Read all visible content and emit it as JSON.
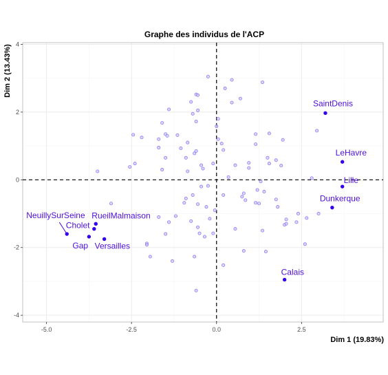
{
  "chart_data": {
    "type": "scatter",
    "title": "Graphe des individus de l'ACP",
    "xlabel": "Dim 1 (19.83%)",
    "ylabel": "Dim 2 (13.43%)",
    "xlim": [
      -5.7,
      4.9
    ],
    "ylim": [
      -4.2,
      4.05
    ],
    "xticks": [
      -5.0,
      -2.5,
      0.0,
      2.5
    ],
    "xtick_labels": [
      "-5.0",
      "-2.5",
      "0.0",
      "2.5"
    ],
    "yticks": [
      -4,
      -2,
      0,
      2,
      4
    ],
    "ytick_labels": [
      "-4",
      "-2",
      "0",
      "2",
      "4"
    ],
    "grid": true,
    "reference_lines": {
      "x": 0,
      "y": 0,
      "style": "dashed"
    },
    "colors": {
      "point": "#3300ee",
      "label": "#4d0ed9",
      "faded_fill": "#cfc7ff",
      "faded_stroke": "#8a7cf5",
      "grid": "#ebebeb",
      "panel_border": "#b3b3b3"
    },
    "labeled_points": [
      {
        "name": "SaintDenis",
        "x": 3.2,
        "y": 1.97
      },
      {
        "name": "LeHavre",
        "x": 3.7,
        "y": 0.53
      },
      {
        "name": "Lille",
        "x": 3.7,
        "y": -0.2
      },
      {
        "name": "Dunkerque",
        "x": 3.4,
        "y": -0.82
      },
      {
        "name": "Calais",
        "x": 2.0,
        "y": -2.95
      },
      {
        "name": "NeuillySurSeine",
        "x": -4.4,
        "y": -1.6
      },
      {
        "name": "Cholet",
        "x": -3.6,
        "y": -1.45
      },
      {
        "name": "RueilMalmaison",
        "x": -3.55,
        "y": -1.3
      },
      {
        "name": "Gap",
        "x": -3.75,
        "y": -1.68
      },
      {
        "name": "Versailles",
        "x": -3.3,
        "y": -1.75
      }
    ],
    "other_points": [
      [
        -0.25,
        3.05
      ],
      [
        0.45,
        2.95
      ],
      [
        1.35,
        2.88
      ],
      [
        0.25,
        2.7
      ],
      [
        -0.6,
        2.52
      ],
      [
        -0.55,
        2.5
      ],
      [
        0.7,
        2.4
      ],
      [
        -0.75,
        2.3
      ],
      [
        0.45,
        2.28
      ],
      [
        -1.4,
        2.08
      ],
      [
        -0.55,
        2.05
      ],
      [
        -0.7,
        1.95
      ],
      [
        0.05,
        1.8
      ],
      [
        -0.6,
        1.72
      ],
      [
        -1.6,
        1.68
      ],
      [
        0.0,
        1.58
      ],
      [
        2.95,
        1.45
      ],
      [
        -1.5,
        1.35
      ],
      [
        -2.45,
        1.33
      ],
      [
        -1.45,
        1.3
      ],
      [
        -1.15,
        1.32
      ],
      [
        1.15,
        1.35
      ],
      [
        1.55,
        1.37
      ],
      [
        -2.2,
        1.25
      ],
      [
        -1.7,
        1.2
      ],
      [
        0.05,
        1.2
      ],
      [
        1.95,
        1.18
      ],
      [
        -0.85,
        1.1
      ],
      [
        0.15,
        1.07
      ],
      [
        1.15,
        1.05
      ],
      [
        -1.7,
        0.95
      ],
      [
        -1.05,
        0.93
      ],
      [
        -0.6,
        0.85
      ],
      [
        0.2,
        0.88
      ],
      [
        -0.65,
        0.78
      ],
      [
        -0.9,
        0.65
      ],
      [
        -1.5,
        0.65
      ],
      [
        1.5,
        0.65
      ],
      [
        1.75,
        0.58
      ],
      [
        0.95,
        0.5
      ],
      [
        -2.4,
        0.48
      ],
      [
        -0.1,
        0.48
      ],
      [
        1.55,
        0.48
      ],
      [
        -0.45,
        0.43
      ],
      [
        0.55,
        0.43
      ],
      [
        -2.55,
        0.38
      ],
      [
        1.9,
        0.42
      ],
      [
        -0.4,
        0.33
      ],
      [
        0.95,
        0.35
      ],
      [
        -3.5,
        0.25
      ],
      [
        -1.6,
        0.3
      ],
      [
        -0.85,
        0.25
      ],
      [
        0.35,
        0.08
      ],
      [
        2.8,
        0.05
      ],
      [
        1.3,
        -0.05
      ],
      [
        -0.25,
        -0.18
      ],
      [
        -0.45,
        -0.2
      ],
      [
        1.2,
        -0.3
      ],
      [
        1.4,
        -0.35
      ],
      [
        0.8,
        -0.4
      ],
      [
        -0.7,
        -0.45
      ],
      [
        0.2,
        -0.45
      ],
      [
        0.75,
        -0.5
      ],
      [
        -0.9,
        -0.55
      ],
      [
        0.85,
        -0.6
      ],
      [
        1.75,
        -0.58
      ],
      [
        -0.55,
        -0.72
      ],
      [
        -3.1,
        -0.7
      ],
      [
        1.15,
        -0.68
      ],
      [
        1.25,
        -0.7
      ],
      [
        -0.95,
        -0.68
      ],
      [
        -0.3,
        -0.8
      ],
      [
        1.8,
        -0.8
      ],
      [
        2.4,
        -1.0
      ],
      [
        3.0,
        -1.0
      ],
      [
        -0.05,
        -0.9
      ],
      [
        -1.2,
        -1.07
      ],
      [
        -1.7,
        -1.1
      ],
      [
        2.05,
        -1.17
      ],
      [
        2.65,
        -1.13
      ],
      [
        -0.2,
        -1.15
      ],
      [
        -0.75,
        -1.22
      ],
      [
        2.35,
        -1.25
      ],
      [
        -1.4,
        -1.25
      ],
      [
        2.0,
        -1.33
      ],
      [
        2.05,
        -1.3
      ],
      [
        -0.55,
        -1.4
      ],
      [
        0.55,
        -1.45
      ],
      [
        1.35,
        -1.5
      ],
      [
        -0.5,
        -1.58
      ],
      [
        -1.5,
        -1.6
      ],
      [
        -0.1,
        -1.58
      ],
      [
        -0.35,
        -1.68
      ],
      [
        2.6,
        -1.9
      ],
      [
        -2.05,
        -1.88
      ],
      [
        -2.05,
        -1.92
      ],
      [
        0.8,
        -2.1
      ],
      [
        1.45,
        -2.12
      ],
      [
        -1.95,
        -2.27
      ],
      [
        -0.65,
        -2.27
      ],
      [
        -1.3,
        -2.4
      ],
      [
        0.2,
        -2.52
      ],
      [
        -0.6,
        -3.27
      ]
    ]
  }
}
